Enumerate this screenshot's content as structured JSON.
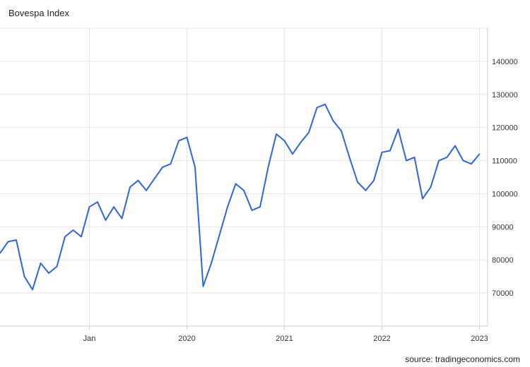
{
  "title": "Bovespa Index",
  "source": "source: tradingeconomics.com",
  "colors": {
    "line": "#2f62e6",
    "grid": "#e6e6e6",
    "axis": "#cccccc"
  },
  "chart_data": {
    "type": "line",
    "title": "Bovespa Index",
    "xlabel": "",
    "ylabel": "",
    "grid": true,
    "y_axis_side": "right",
    "ylim": [
      60000,
      150000
    ],
    "yticks": [
      70000,
      80000,
      90000,
      100000,
      110000,
      120000,
      130000,
      140000
    ],
    "xticks": [
      {
        "label": "Jan",
        "x": "2019-01"
      },
      {
        "label": "2020",
        "x": "2020-01"
      },
      {
        "label": "2021",
        "x": "2021-01"
      },
      {
        "label": "2022",
        "x": "2022-01"
      },
      {
        "label": "2023",
        "x": "2023-01"
      }
    ],
    "xlim": [
      "2018-02",
      "2023-02"
    ],
    "series": [
      {
        "x": [
          "2018-02",
          "2018-03",
          "2018-04",
          "2018-05",
          "2018-06",
          "2018-07",
          "2018-08",
          "2018-09",
          "2018-10",
          "2018-11",
          "2018-12",
          "2019-01",
          "2019-02",
          "2019-03",
          "2019-04",
          "2019-05",
          "2019-06",
          "2019-07",
          "2019-08",
          "2019-09",
          "2019-10",
          "2019-11",
          "2019-12",
          "2020-01",
          "2020-02",
          "2020-03",
          "2020-04",
          "2020-05",
          "2020-06",
          "2020-07",
          "2020-08",
          "2020-09",
          "2020-10",
          "2020-11",
          "2020-12",
          "2021-01",
          "2021-02",
          "2021-03",
          "2021-04",
          "2021-05",
          "2021-06",
          "2021-07",
          "2021-08",
          "2021-09",
          "2021-10",
          "2021-11",
          "2021-12",
          "2022-01",
          "2022-02",
          "2022-03",
          "2022-04",
          "2022-05",
          "2022-06",
          "2022-07",
          "2022-08",
          "2022-09",
          "2022-10",
          "2022-11",
          "2022-12",
          "2023-01"
        ],
        "values": [
          82000,
          85500,
          86000,
          75000,
          71000,
          79000,
          76000,
          78000,
          87000,
          89000,
          87000,
          96000,
          97500,
          92000,
          96000,
          92500,
          102000,
          104000,
          101000,
          104500,
          108000,
          109000,
          116000,
          117000,
          108000,
          72000,
          79000,
          87500,
          96000,
          103000,
          101000,
          95000,
          96000,
          108000,
          118000,
          116000,
          112000,
          115500,
          118500,
          126000,
          127000,
          122000,
          119000,
          111000,
          103500,
          101000,
          104000,
          112500,
          113000,
          119500,
          110000,
          111000,
          98500,
          102000,
          110000,
          111000,
          114500,
          110000,
          109000,
          112000
        ]
      }
    ]
  }
}
